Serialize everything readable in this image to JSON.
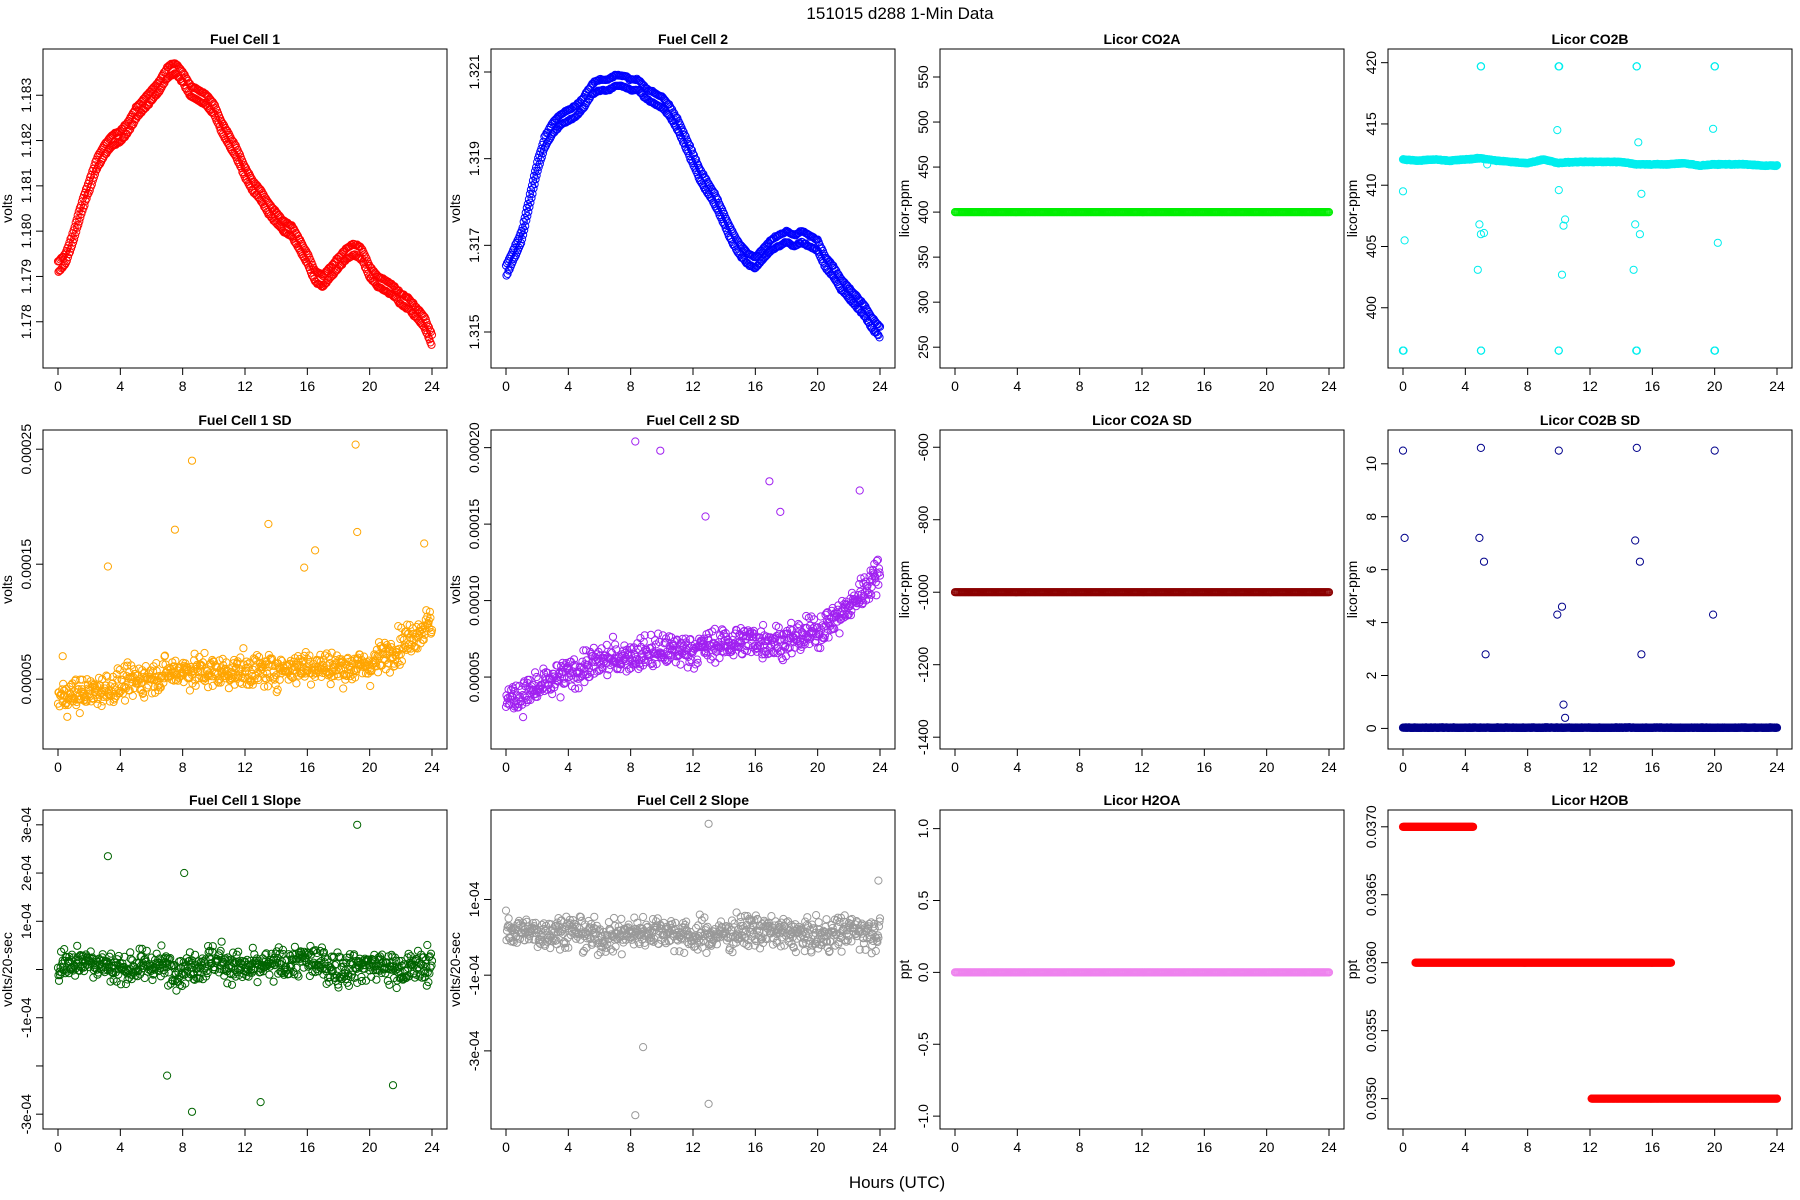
{
  "figure": {
    "title": "151015   d288   1-Min Data",
    "xlabel": "Hours (UTC)"
  },
  "chart_data": [
    {
      "type": "scatter",
      "title": "Fuel Cell 1",
      "ylabel": "volts",
      "color": "#ff0000",
      "xlim": [
        0,
        24
      ],
      "xticks": [
        0,
        4,
        8,
        12,
        16,
        20,
        24
      ],
      "ylim": [
        1.1772,
        1.1838
      ],
      "yticks": [
        1.178,
        1.179,
        1.18,
        1.181,
        1.182,
        1.183
      ],
      "ytick_labels": [
        "1.178",
        "1.179",
        "1.180",
        "1.181",
        "1.182",
        "1.183"
      ],
      "series": [
        {
          "x": [
            0,
            0.5,
            1,
            1.5,
            2,
            2.5,
            3,
            3.5,
            4,
            4.5,
            5,
            5.5,
            6,
            6.5,
            7,
            7.5,
            8,
            8.5,
            9,
            9.5,
            10,
            10.5,
            11,
            11.5,
            12,
            12.5,
            13,
            13.5,
            14,
            14.5,
            15,
            15.5,
            16,
            16.5,
            17,
            17.5,
            18,
            18.5,
            19,
            19.5,
            20,
            20.5,
            21,
            21.5,
            22,
            22.5,
            23,
            23.5,
            24
          ],
          "y": [
            1.1792,
            1.1794,
            1.1799,
            1.1805,
            1.181,
            1.1815,
            1.1818,
            1.182,
            1.1821,
            1.1823,
            1.1826,
            1.1828,
            1.183,
            1.1832,
            1.1835,
            1.1836,
            1.1834,
            1.1831,
            1.183,
            1.1829,
            1.1827,
            1.1823,
            1.182,
            1.1817,
            1.1813,
            1.181,
            1.1808,
            1.1805,
            1.1803,
            1.1801,
            1.18,
            1.1797,
            1.1794,
            1.179,
            1.1789,
            1.1791,
            1.1793,
            1.1795,
            1.1796,
            1.1795,
            1.1791,
            1.1789,
            1.1788,
            1.1787,
            1.1785,
            1.1784,
            1.1782,
            1.178,
            1.1776
          ]
        }
      ]
    },
    {
      "type": "scatter",
      "title": "Fuel Cell 2",
      "ylabel": "volts",
      "color": "#0000ff",
      "xlim": [
        0,
        24
      ],
      "xticks": [
        0,
        4,
        8,
        12,
        16,
        20,
        24
      ],
      "ylim": [
        1.3144,
        1.3213
      ],
      "yticks": [
        1.315,
        1.317,
        1.319,
        1.321
      ],
      "ytick_labels": [
        "1.315",
        "1.317",
        "1.319",
        "1.321"
      ],
      "series": [
        {
          "x": [
            0,
            0.5,
            1,
            1.5,
            2,
            2.5,
            3,
            3.5,
            4,
            4.5,
            5,
            5.5,
            6,
            6.5,
            7,
            7.5,
            8,
            8.5,
            9,
            9.5,
            10,
            10.5,
            11,
            11.5,
            12,
            12.5,
            13,
            13.5,
            14,
            14.5,
            15,
            15.5,
            16,
            16.5,
            17,
            17.5,
            18,
            18.5,
            19,
            19.5,
            20,
            20.5,
            21,
            21.5,
            22,
            22.5,
            23,
            23.5,
            24
          ],
          "y": [
            1.3164,
            1.3168,
            1.3172,
            1.318,
            1.3188,
            1.3194,
            1.3197,
            1.3199,
            1.32,
            1.3201,
            1.3203,
            1.3206,
            1.3207,
            1.3207,
            1.3208,
            1.3208,
            1.3207,
            1.3207,
            1.3205,
            1.3204,
            1.3203,
            1.3201,
            1.3198,
            1.3194,
            1.319,
            1.3186,
            1.3183,
            1.318,
            1.3176,
            1.3172,
            1.3169,
            1.3167,
            1.3166,
            1.3168,
            1.317,
            1.3171,
            1.3172,
            1.3171,
            1.3172,
            1.3171,
            1.317,
            1.3166,
            1.3164,
            1.3161,
            1.3159,
            1.3157,
            1.3155,
            1.3152,
            1.315
          ]
        }
      ]
    },
    {
      "type": "scatter",
      "title": "Licor CO2A",
      "ylabel": "licor-ppm",
      "color": "#00ee00",
      "xlim": [
        0,
        24
      ],
      "xticks": [
        0,
        4,
        8,
        12,
        16,
        20,
        24
      ],
      "ylim": [
        238,
        570
      ],
      "yticks": [
        250,
        300,
        350,
        400,
        450,
        500,
        550
      ],
      "ytick_labels": [
        "250",
        "300",
        "350",
        "400",
        "450",
        "500",
        "550"
      ],
      "series": [
        {
          "x": [
            0,
            24
          ],
          "y": [
            400,
            400
          ]
        }
      ]
    },
    {
      "type": "scatter",
      "title": "Licor CO2B",
      "ylabel": "licor-ppm",
      "color": "#00eeee",
      "xlim": [
        0,
        24
      ],
      "xticks": [
        0,
        4,
        8,
        12,
        16,
        20,
        24
      ],
      "ylim": [
        395.9,
        420.3
      ],
      "yticks": [
        400,
        405,
        410,
        415,
        420
      ],
      "ytick_labels": [
        "400",
        "405",
        "410",
        "415",
        "420"
      ],
      "series": [
        {
          "x": [
            0,
            1,
            2,
            3,
            4,
            5,
            6,
            7,
            8,
            9,
            10,
            11,
            12,
            13,
            14,
            15,
            16,
            17,
            18,
            19,
            20,
            21,
            22,
            23,
            24
          ],
          "y": [
            412.1,
            412.0,
            412.1,
            412.0,
            412.1,
            412.2,
            412.0,
            411.9,
            411.8,
            412.1,
            411.8,
            411.9,
            411.9,
            411.9,
            411.9,
            411.7,
            411.7,
            411.7,
            411.8,
            411.6,
            411.7,
            411.7,
            411.7,
            411.6,
            411.6
          ]
        },
        {
          "x": [
            0,
            5,
            10,
            15,
            20
          ],
          "y": [
            396.5,
            396.5,
            396.5,
            396.5,
            396.5
          ]
        },
        {
          "x": [
            5,
            10,
            15,
            20
          ],
          "y": [
            419.7,
            419.7,
            419.7,
            419.7
          ]
        }
      ]
    },
    {
      "type": "scatter",
      "title": "Fuel Cell 1 SD",
      "ylabel": "volts",
      "color": "#ffa500",
      "xlim": [
        0,
        24
      ],
      "xticks": [
        0,
        4,
        8,
        12,
        16,
        20,
        24
      ],
      "ylim": [
        -2e-06,
        0.000258
      ],
      "yticks": [
        5e-05,
        0.00015,
        0.00025
      ],
      "ytick_labels": [
        "0.00005",
        "0.00015",
        "0.00025"
      ],
      "series": [
        {
          "x": [
            0,
            2,
            4,
            6,
            8,
            10,
            12,
            14,
            16,
            18,
            20,
            22,
            24
          ],
          "y": [
            3.5e-05,
            3.8e-05,
            4.5e-05,
            5.2e-05,
            5.8e-05,
            5.6e-05,
            5.7e-05,
            5.8e-05,
            6.2e-05,
            6e-05,
            6.2e-05,
            8e-05,
            0.0001
          ]
        },
        {
          "x": [
            0.3,
            3.2,
            7.5,
            8.6,
            13.5,
            15.8,
            16.5,
            19.1,
            19.2,
            23.5
          ],
          "y": [
            7e-05,
            0.000148,
            0.00018,
            0.00024,
            0.000185,
            0.000147,
            0.000162,
            0.000254,
            0.000178,
            0.000168
          ]
        }
      ]
    },
    {
      "type": "scatter",
      "title": "Fuel Cell 2 SD",
      "ylabel": "volts",
      "color": "#a020f0",
      "xlim": [
        0,
        24
      ],
      "xticks": [
        0,
        4,
        8,
        12,
        16,
        20,
        24
      ],
      "ylim": [
        9.5e-06,
        0.000205
      ],
      "yticks": [
        5e-05,
        0.0001,
        0.00015,
        0.0002
      ],
      "ytick_labels": [
        "0.00005",
        "0.00010",
        "0.00015",
        "0.00020"
      ],
      "series": [
        {
          "x": [
            0,
            2,
            4,
            6,
            8,
            10,
            12,
            14,
            16,
            18,
            20,
            22,
            24
          ],
          "y": [
            3.5e-05,
            4.2e-05,
            5.2e-05,
            6e-05,
            6.4e-05,
            6.7e-05,
            6.8e-05,
            7.2e-05,
            7.4e-05,
            7.3e-05,
            8e-05,
            9.5e-05,
            0.00012
          ]
        },
        {
          "x": [
            8.3,
            9.9,
            12.8,
            16.9,
            17.6,
            22.7
          ],
          "y": [
            0.000204,
            0.000198,
            0.000155,
            0.000178,
            0.000158,
            0.000172
          ]
        }
      ]
    },
    {
      "type": "scatter",
      "title": "Licor CO2A SD",
      "ylabel": "licor-ppm",
      "color": "#8b0000",
      "xlim": [
        0,
        24
      ],
      "xticks": [
        0,
        4,
        8,
        12,
        16,
        20,
        24
      ],
      "ylim": [
        -1405,
        -580
      ],
      "yticks": [
        -1400,
        -1200,
        -1000,
        -800,
        -600
      ],
      "ytick_labels": [
        "-1400",
        "-1200",
        "-1000",
        "-800",
        "-600"
      ],
      "series": [
        {
          "x": [
            0,
            24
          ],
          "y": [
            -1000,
            -1000
          ]
        }
      ]
    },
    {
      "type": "scatter",
      "title": "Licor CO2B SD",
      "ylabel": "licor-ppm",
      "color": "#00008b",
      "xlim": [
        0,
        24
      ],
      "xticks": [
        0,
        4,
        8,
        12,
        16,
        20,
        24
      ],
      "ylim": [
        -0.4,
        10.9
      ],
      "yticks": [
        0,
        2,
        4,
        6,
        8,
        10
      ],
      "ytick_labels": [
        "0",
        "2",
        "4",
        "6",
        "8",
        "10"
      ],
      "series": [
        {
          "x": [
            0,
            24
          ],
          "y": [
            0.02,
            0.02
          ]
        },
        {
          "x": [
            0,
            0.1,
            4.9,
            5.0,
            5.2,
            5.3,
            9.9,
            10.0,
            10.2,
            10.3,
            10.4,
            14.9,
            15.0,
            15.2,
            15.3,
            19.9,
            20.0
          ],
          "y": [
            10.5,
            7.2,
            7.2,
            10.6,
            6.3,
            2.8,
            4.3,
            10.5,
            4.6,
            0.9,
            0.4,
            7.1,
            10.6,
            6.3,
            2.8,
            4.3,
            10.5
          ]
        }
      ]
    },
    {
      "type": "scatter",
      "title": "Fuel Cell 1 Slope",
      "ylabel": "volts/20-sec",
      "color": "#006400",
      "xlim": [
        0,
        24
      ],
      "xticks": [
        0,
        4,
        8,
        12,
        16,
        20,
        24
      ],
      "ylim": [
        -0.00031,
        0.00031
      ],
      "yticks": [
        -0.0003,
        -0.0001,
        0.0001,
        0.0003
      ],
      "minor_yticks": [
        -0.0002,
        0,
        0.0002
      ],
      "ytick_labels": [
        "-3e-04",
        "-1e-04",
        "1e-04",
        "3e-04"
      ],
      "minor_ytick_labels": [
        "",
        "",
        "2e-04"
      ],
      "series": [
        {
          "x": [
            0,
            2,
            4,
            6,
            8,
            10,
            12,
            14,
            16,
            18,
            20,
            22,
            24
          ],
          "y": [
            1e-05,
            2e-05,
            0.0,
            1e-05,
            0.0,
            2e-05,
            0.0,
            1e-05,
            2e-05,
            0.0,
            1e-05,
            0.0,
            1e-05
          ]
        },
        {
          "x": [
            3.2,
            8.6,
            8.1,
            13.0,
            19.2,
            21.5,
            7.0
          ],
          "y": [
            0.000235,
            -0.000295,
            0.0002,
            -0.000275,
            0.0003,
            -0.00024,
            -0.00022
          ]
        }
      ]
    },
    {
      "type": "scatter",
      "title": "Fuel Cell 2 Slope",
      "ylabel": "volts/20-sec",
      "color": "#999999",
      "xlim": [
        0,
        24
      ],
      "xticks": [
        0,
        4,
        8,
        12,
        16,
        20,
        24
      ],
      "ylim": [
        -0.00048,
        0.00031
      ],
      "yticks": [
        -0.0003,
        -0.0001,
        0.0001
      ],
      "ytick_labels": [
        "-3e-04",
        "-1e-04",
        "1e-04"
      ],
      "series": [
        {
          "x": [
            0,
            2,
            4,
            6,
            8,
            10,
            12,
            14,
            16,
            18,
            20,
            22,
            24
          ],
          "y": [
            2e-05,
            1e-05,
            2e-05,
            0.0,
            1e-05,
            2e-05,
            0.0,
            1e-05,
            2e-05,
            1e-05,
            0.0,
            2e-05,
            1e-05
          ]
        },
        {
          "x": [
            8.3,
            13.0,
            13.0,
            8.8,
            23.9
          ],
          "y": [
            -0.00047,
            0.0003,
            -0.00044,
            -0.00029,
            0.00015
          ]
        }
      ]
    },
    {
      "type": "scatter",
      "title": "Licor H2OA",
      "ylabel": "ppt",
      "color": "#ee82ee",
      "xlim": [
        0,
        24
      ],
      "xticks": [
        0,
        4,
        8,
        12,
        16,
        20,
        24
      ],
      "ylim": [
        -1.02,
        1.06
      ],
      "yticks": [
        -1.0,
        -0.5,
        0.0,
        0.5,
        1.0
      ],
      "ytick_labels": [
        "-1.0",
        "-0.5",
        "0.0",
        "0.5",
        "1.0"
      ],
      "series": [
        {
          "x": [
            0,
            24
          ],
          "y": [
            0.0,
            0.0
          ]
        }
      ]
    },
    {
      "type": "scatter",
      "title": "Licor H2OB",
      "ylabel": "ppt",
      "color": "#ff0000",
      "xlim": [
        0,
        24
      ],
      "xticks": [
        0,
        4,
        8,
        12,
        16,
        20,
        24
      ],
      "ylim": [
        0.03485,
        0.03705
      ],
      "yticks": [
        0.035,
        0.0355,
        0.036,
        0.0365,
        0.037
      ],
      "ytick_labels": [
        "0.0350",
        "0.0355",
        "0.0360",
        "0.0365",
        "0.0370"
      ],
      "series": [
        {
          "x": [
            0,
            4.5
          ],
          "y": [
            0.037,
            0.037
          ]
        },
        {
          "x": [
            0.8,
            17.2
          ],
          "y": [
            0.036,
            0.036
          ]
        },
        {
          "x": [
            12.1,
            24
          ],
          "y": [
            0.035,
            0.035
          ]
        }
      ]
    }
  ]
}
